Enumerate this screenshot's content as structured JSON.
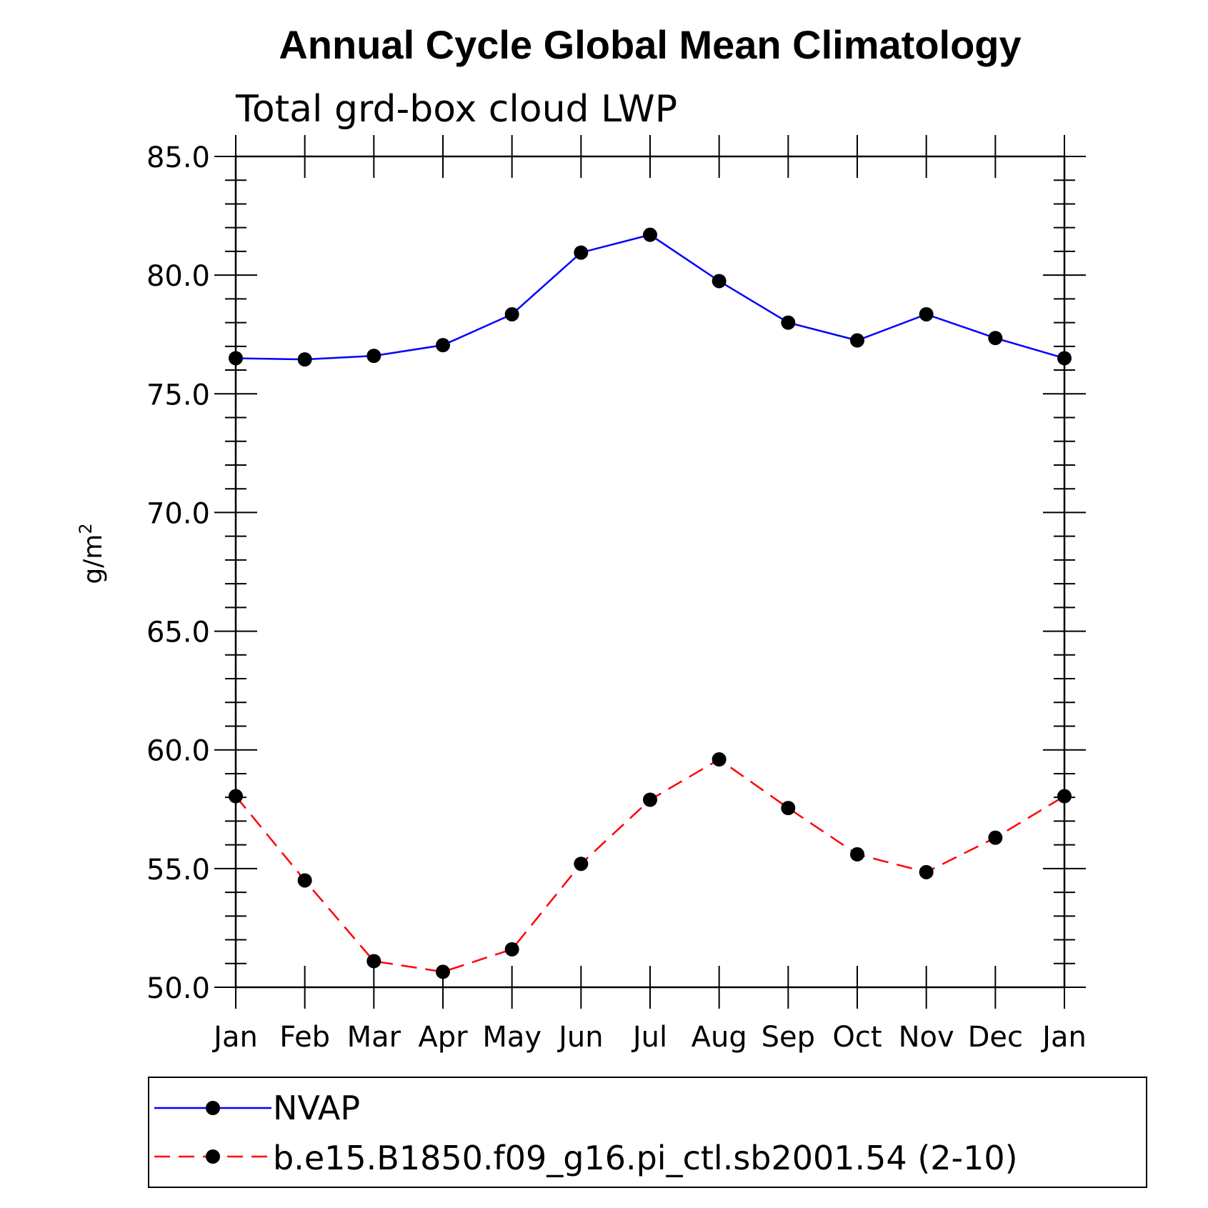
{
  "chart_data": {
    "type": "line",
    "title": "Annual Cycle Global Mean Climatology",
    "subtitle": "Total grd-box cloud LWP",
    "ylabel": "g/m",
    "ylabel_superscript": "2",
    "xlabel": "",
    "categories": [
      "Jan",
      "Feb",
      "Mar",
      "Apr",
      "May",
      "Jun",
      "Jul",
      "Aug",
      "Sep",
      "Oct",
      "Nov",
      "Dec",
      "Jan"
    ],
    "ylim": [
      50.0,
      85.0
    ],
    "yticks": [
      "50.0",
      "55.0",
      "60.0",
      "65.0",
      "70.0",
      "75.0",
      "80.0",
      "85.0"
    ],
    "grid": false,
    "legend_position": "bottom",
    "series": [
      {
        "name": "NVAP",
        "color": "#0000ff",
        "line_style": "solid",
        "marker": "filled-circle",
        "values": [
          76.5,
          76.45,
          76.6,
          77.05,
          78.35,
          80.95,
          81.7,
          79.75,
          78.0,
          77.25,
          78.35,
          77.35,
          76.5
        ]
      },
      {
        "name": "b.e15.B1850.f09_g16.pi_ctl.sb2001.54 (2-10)",
        "color": "#ff0000",
        "line_style": "dashed",
        "marker": "filled-circle",
        "values": [
          58.05,
          54.5,
          51.1,
          50.65,
          51.6,
          55.2,
          57.9,
          59.6,
          57.55,
          55.6,
          54.85,
          56.3,
          58.05
        ]
      }
    ]
  }
}
